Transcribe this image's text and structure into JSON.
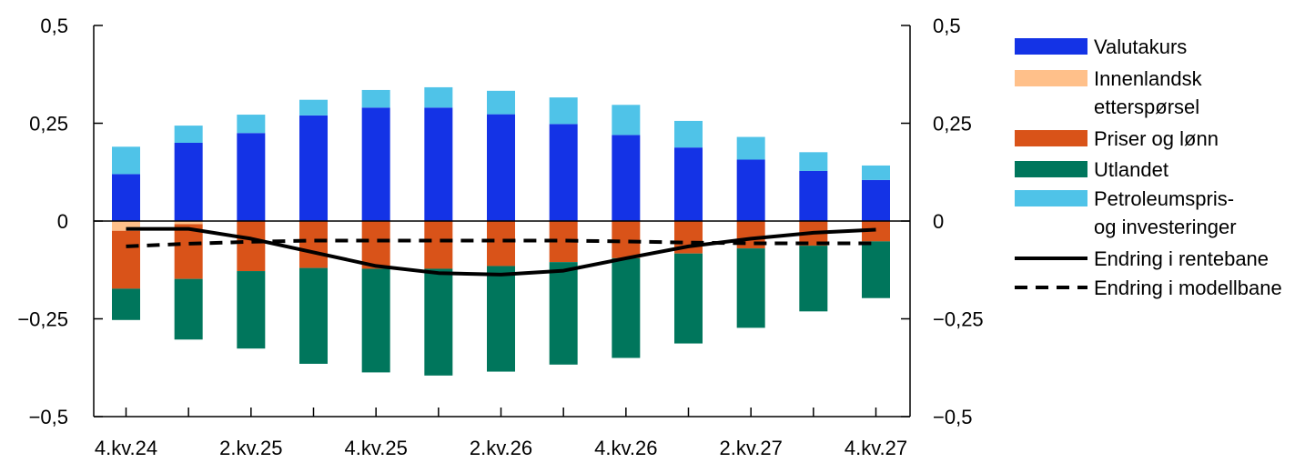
{
  "chart_data": {
    "type": "bar",
    "stacked": true,
    "title": "",
    "xlabel": "",
    "ylabel": "",
    "ylim": [
      -0.5,
      0.5
    ],
    "yticks": [
      0.5,
      0.25,
      0,
      -0.25,
      -0.5
    ],
    "ytick_labels_left": [
      "0,5",
      "0,25",
      "0",
      "−0,25",
      "−0,5"
    ],
    "ytick_labels_right": [
      "0,5",
      "0,25",
      "0",
      "−0,25",
      "−0,5"
    ],
    "categories": [
      "4.kv.24",
      "1.kv.25",
      "2.kv.25",
      "3.kv.25",
      "4.kv.25",
      "1.kv.26",
      "2.kv.26",
      "3.kv.26",
      "4.kv.26",
      "1.kv.27",
      "2.kv.27",
      "3.kv.27",
      "4.kv.27"
    ],
    "xtick_labels": [
      "4.kv.24",
      "2.kv.25",
      "4.kv.25",
      "2.kv.26",
      "4.kv.26",
      "2.kv.27",
      "4.kv.27"
    ],
    "xtick_label_indices": [
      0,
      2,
      4,
      6,
      8,
      10,
      12
    ],
    "series": [
      {
        "name": "Valutakurs",
        "color": "#1433e6",
        "values": [
          0.12,
          0.2,
          0.225,
          0.27,
          0.29,
          0.29,
          0.273,
          0.248,
          0.22,
          0.188,
          0.157,
          0.128,
          0.105
        ]
      },
      {
        "name": "Innenlandsk etterspørsel",
        "color": "#ffc08a",
        "values": [
          -0.025,
          -0.008,
          0,
          0,
          0,
          0,
          0,
          0,
          0,
          0,
          0,
          0,
          0
        ]
      },
      {
        "name": "Priser og lønn",
        "color": "#d95319",
        "values": [
          -0.148,
          -0.14,
          -0.128,
          -0.12,
          -0.122,
          -0.122,
          -0.115,
          -0.105,
          -0.095,
          -0.083,
          -0.07,
          -0.063,
          -0.052
        ]
      },
      {
        "name": "Utlandet",
        "color": "#00765c",
        "values": [
          -0.08,
          -0.155,
          -0.198,
          -0.245,
          -0.265,
          -0.273,
          -0.27,
          -0.262,
          -0.255,
          -0.23,
          -0.203,
          -0.168,
          -0.145
        ]
      },
      {
        "name": "Petroleumspris- og investeringer",
        "color": "#4fc3e8",
        "values": [
          0.07,
          0.044,
          0.047,
          0.04,
          0.045,
          0.052,
          0.06,
          0.068,
          0.077,
          0.068,
          0.058,
          0.048,
          0.037
        ]
      }
    ],
    "lines": [
      {
        "name": "Endring i rentebane",
        "style": "solid",
        "color": "#000000",
        "values": [
          -0.02,
          -0.02,
          -0.045,
          -0.08,
          -0.115,
          -0.133,
          -0.137,
          -0.127,
          -0.095,
          -0.065,
          -0.045,
          -0.03,
          -0.022
        ]
      },
      {
        "name": "Endring i modellbane",
        "style": "dashed",
        "color": "#000000",
        "values": [
          -0.065,
          -0.058,
          -0.053,
          -0.05,
          -0.05,
          -0.05,
          -0.05,
          -0.05,
          -0.052,
          -0.055,
          -0.057,
          -0.057,
          -0.057
        ]
      }
    ],
    "legend": [
      {
        "label_lines": [
          "Valutakurs"
        ],
        "kind": "bar",
        "color": "#1433e6"
      },
      {
        "label_lines": [
          "Innenlandsk",
          "etterspørsel"
        ],
        "kind": "bar",
        "color": "#ffc08a"
      },
      {
        "label_lines": [
          "Priser og lønn"
        ],
        "kind": "bar",
        "color": "#d95319"
      },
      {
        "label_lines": [
          "Utlandet"
        ],
        "kind": "bar",
        "color": "#00765c"
      },
      {
        "label_lines": [
          "Petroleumspris-",
          "og investeringer"
        ],
        "kind": "bar",
        "color": "#4fc3e8"
      },
      {
        "label_lines": [
          "Endring i rentebane"
        ],
        "kind": "line-solid",
        "color": "#000000"
      },
      {
        "label_lines": [
          "Endring i modellbane"
        ],
        "kind": "line-dashed",
        "color": "#000000"
      }
    ],
    "legend_position": "right"
  }
}
